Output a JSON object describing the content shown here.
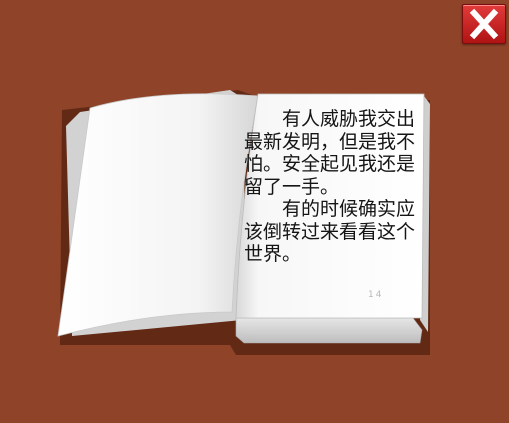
{
  "book": {
    "paragraphs": [
      "有人威胁我交出最新发明，但是我不怕。安全起见我还是留了一手。",
      "有的时候确实应该倒转过来看看这个世界。"
    ],
    "page_number": "14"
  },
  "controls": {
    "close_icon": "close-icon"
  },
  "colors": {
    "background": "#8f4429",
    "close_button": "#c81f1f"
  }
}
